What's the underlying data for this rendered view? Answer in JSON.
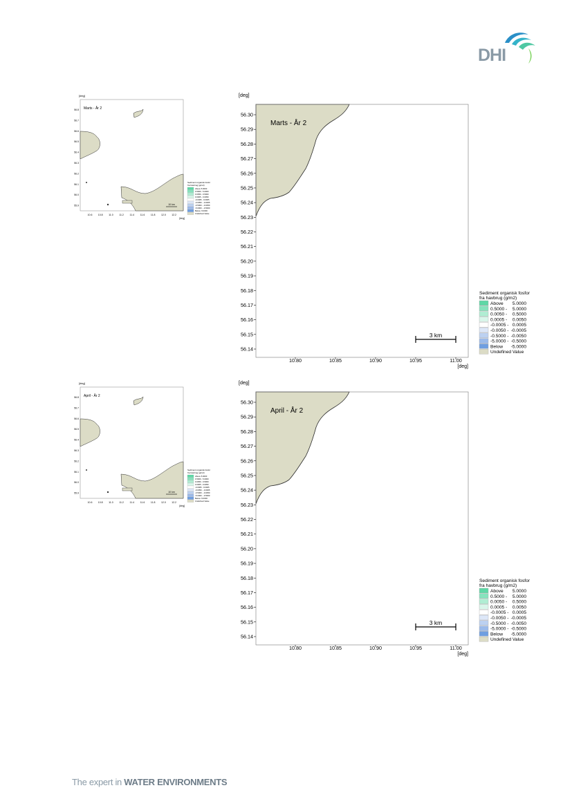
{
  "header": {
    "logo_text": "DHI"
  },
  "footer": {
    "tagline_plain": "The expert in ",
    "tagline_bold": "WATER ENVIRONMENTS"
  },
  "colors": {
    "land": "#dcdcc6",
    "land_edge": "#2a2a2a",
    "above": "#5ed8a6",
    "below": "#6f9ee0"
  },
  "axis": {
    "y_unit": "[deg]",
    "x_unit": "[deg]",
    "y_ticks": [
      "56.30",
      "56.29",
      "56.28",
      "56.27",
      "56.26",
      "56.25",
      "56.24",
      "56.23",
      "56.22",
      "56.21",
      "56.20",
      "56.19",
      "56.18",
      "56.17",
      "56.16",
      "56.15",
      "56.14"
    ],
    "x_ticks": [
      "10.80",
      "10.85",
      "10.90",
      "10.95",
      "11.00"
    ],
    "scale_bar": "3 km"
  },
  "overview": {
    "y_unit": "[deg]",
    "x_unit": "[deg]",
    "y_ticks": [
      "56.8",
      "56.7",
      "56.6",
      "56.5",
      "56.4",
      "56.3",
      "56.2",
      "56.1",
      "56.0",
      "55.9"
    ],
    "x_ticks": [
      "10.6",
      "10.8",
      "11.0",
      "11.2",
      "11.4",
      "11.6",
      "11.8",
      "12.0",
      "12.2"
    ],
    "scale_bar": "10 km"
  },
  "legend": {
    "title_line1": "Sediment organisk fosfor",
    "title_line2": "fra havbrug (g/m2)",
    "items": [
      {
        "label": "Above",
        "range": "5.0000",
        "color": "#5ed8a6"
      },
      {
        "label": "0.5000 -",
        "range": "5.0000",
        "color": "#86e3bd"
      },
      {
        "label": "0.0050 -",
        "range": "0.5000",
        "color": "#b0edd3"
      },
      {
        "label": "0.0005 -",
        "range": "0.0050",
        "color": "#d9f6ea"
      },
      {
        "label": "-0.0005 -",
        "range": "0.0005",
        "color": "#ffffff"
      },
      {
        "label": "-0.0050 -",
        "range": "-0.0005",
        "color": "#dde7f8"
      },
      {
        "label": "-0.5000 -",
        "range": "-0.0050",
        "color": "#bcd1f1"
      },
      {
        "label": "-5.0000 -",
        "range": "-0.5000",
        "color": "#9bbaea"
      },
      {
        "label": "Below",
        "range": "-5.0000",
        "color": "#6f9ee0"
      },
      {
        "label": "Undefined Value",
        "range": "",
        "color": "#dcdcc6"
      }
    ]
  },
  "panels": [
    {
      "id": "marts",
      "title": "Marts - År 2"
    },
    {
      "id": "april",
      "title": "April - År 2"
    }
  ]
}
